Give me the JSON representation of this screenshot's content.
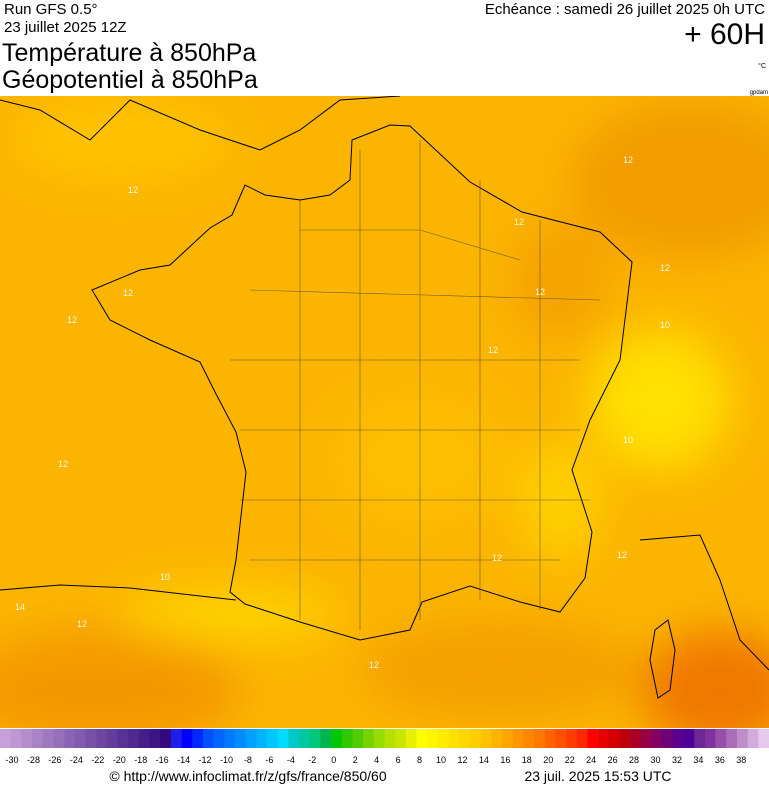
{
  "header": {
    "run": "Run GFS 0.5°",
    "date": "23 juillet 2025 12Z",
    "title_temperature": "Température à 850hPa",
    "title_geopotential": "Géopotentiel à 850hPa",
    "echeance": "Echéance : samedi 26 juillet 2025 0h UTC",
    "offset": "+ 60H",
    "unit": "°C",
    "credit": "gpdam"
  },
  "map": {
    "contour_labels": [
      12,
      12,
      12,
      12,
      12,
      12,
      12,
      12,
      10,
      10,
      12,
      12,
      12,
      10,
      14,
      12,
      12
    ]
  },
  "legend": {
    "ticks": [
      -30,
      -28,
      -26,
      -24,
      -22,
      -20,
      -18,
      -16,
      -14,
      -12,
      -10,
      -8,
      -6,
      -4,
      -2,
      0,
      2,
      4,
      6,
      8,
      10,
      12,
      14,
      16,
      18,
      20,
      22,
      24,
      26,
      28,
      30,
      32,
      34,
      36,
      38
    ],
    "colors": [
      "#c8a0d8",
      "#be96d2",
      "#b48ccc",
      "#aa82c6",
      "#a078c0",
      "#966eba",
      "#8c64b4",
      "#825aae",
      "#7850a8",
      "#6e46a2",
      "#643c9c",
      "#5a3296",
      "#502890",
      "#461e8a",
      "#3c1484",
      "#320a7e",
      "#1e1ee6",
      "#0000ff",
      "#0028ff",
      "#0050ff",
      "#0064ff",
      "#0078ff",
      "#008cff",
      "#00a0ff",
      "#00b4ff",
      "#00c8ff",
      "#00dcff",
      "#00c8c8",
      "#00c8a0",
      "#00c878",
      "#00b450",
      "#00c800",
      "#32c800",
      "#50cc00",
      "#78d200",
      "#96dc00",
      "#b4e100",
      "#c8e600",
      "#e6f000",
      "#ffff00",
      "#fff500",
      "#ffeb00",
      "#ffe100",
      "#ffd700",
      "#ffcd00",
      "#ffc300",
      "#ffb400",
      "#ffa500",
      "#ff9600",
      "#ff8700",
      "#ff7800",
      "#ff6400",
      "#ff5000",
      "#ff3c00",
      "#ff2800",
      "#ff0000",
      "#e60000",
      "#d20000",
      "#be000a",
      "#aa0028",
      "#960046",
      "#820064",
      "#6e0078",
      "#5a008c",
      "#500096",
      "#6e2896",
      "#8232a0",
      "#9650aa",
      "#aa6eb9",
      "#be8cc8",
      "#d2aadc",
      "#e6c8ee"
    ]
  },
  "footer": {
    "url": "© http://www.infoclimat.fr/z/gfs/france/850/60",
    "timestamp": "23 juil. 2025 15:53 UTC"
  }
}
